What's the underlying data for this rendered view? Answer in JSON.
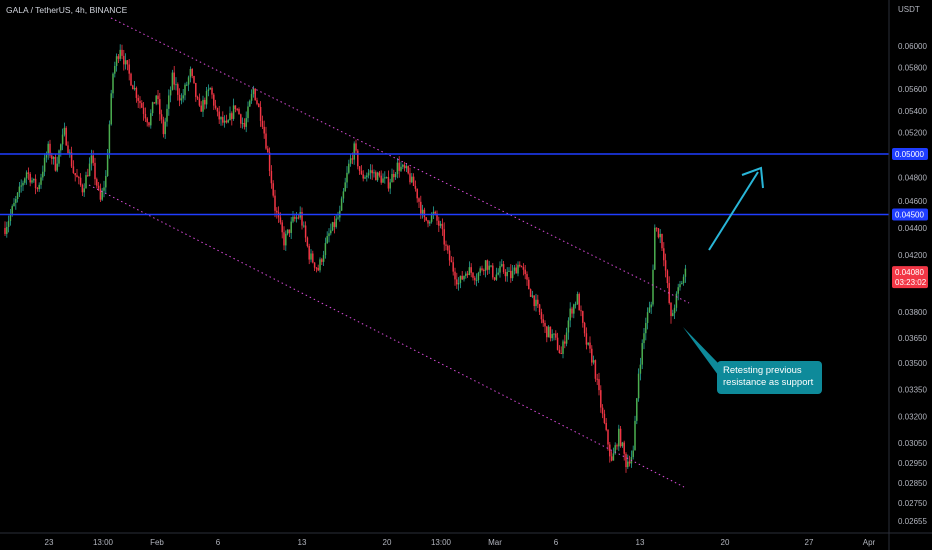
{
  "header": {
    "title": "GALA / TetherUS, 4h, BINANCE"
  },
  "chart_data": {
    "type": "candlestick",
    "currency_label": "USDT",
    "y_ticks": [
      "0.06000",
      "0.05800",
      "0.05600",
      "0.05400",
      "0.05200",
      "0.04800",
      "0.04600",
      "0.04400",
      "0.04200",
      "0.03800",
      "0.03650",
      "0.03500",
      "0.03350",
      "0.03200",
      "0.03050",
      "0.02950",
      "0.02850",
      "0.02750",
      "0.02655"
    ],
    "x_ticks": [
      "23",
      "13:00",
      "Feb",
      "6",
      "13",
      "20",
      "13:00",
      "Mar",
      "6",
      "13",
      "20",
      "27",
      "Apr"
    ],
    "levels": [
      {
        "label": "0.05000",
        "color": "#1f3dff"
      },
      {
        "label": "0.04500",
        "color": "#1f3dff"
      }
    ],
    "last_price": {
      "price": "0.04080",
      "countdown": "03:23:02",
      "color": "#f23645"
    },
    "channel_color": "#d84bd8",
    "up_color": "#26a69a",
    "up_body_color": "#4caf50",
    "down_color": "#f23645",
    "arrow_color": "#29b6d8",
    "anchors": [
      [
        0,
        0.044
      ],
      [
        6,
        0.046
      ],
      [
        12,
        0.0485
      ],
      [
        18,
        0.047
      ],
      [
        24,
        0.0505
      ],
      [
        28,
        0.049
      ],
      [
        33,
        0.052
      ],
      [
        38,
        0.0485
      ],
      [
        43,
        0.047
      ],
      [
        48,
        0.0495
      ],
      [
        53,
        0.046
      ],
      [
        56,
        0.048
      ],
      [
        60,
        0.0575
      ],
      [
        64,
        0.06
      ],
      [
        67,
        0.0582
      ],
      [
        72,
        0.056
      ],
      [
        77,
        0.054
      ],
      [
        80,
        0.053
      ],
      [
        84,
        0.0555
      ],
      [
        88,
        0.052
      ],
      [
        93,
        0.057
      ],
      [
        98,
        0.055
      ],
      [
        103,
        0.0575
      ],
      [
        108,
        0.054
      ],
      [
        114,
        0.056
      ],
      [
        118,
        0.0535
      ],
      [
        123,
        0.0525
      ],
      [
        128,
        0.0545
      ],
      [
        133,
        0.0525
      ],
      [
        138,
        0.056
      ],
      [
        143,
        0.053
      ],
      [
        146,
        0.05
      ],
      [
        150,
        0.0455
      ],
      [
        155,
        0.043
      ],
      [
        160,
        0.0445
      ],
      [
        164,
        0.045
      ],
      [
        169,
        0.042
      ],
      [
        174,
        0.041
      ],
      [
        180,
        0.0435
      ],
      [
        186,
        0.045
      ],
      [
        191,
        0.049
      ],
      [
        194,
        0.0505
      ],
      [
        198,
        0.048
      ],
      [
        203,
        0.0485
      ],
      [
        208,
        0.048
      ],
      [
        213,
        0.0475
      ],
      [
        218,
        0.049
      ],
      [
        223,
        0.0485
      ],
      [
        228,
        0.047
      ],
      [
        233,
        0.0445
      ],
      [
        238,
        0.045
      ],
      [
        242,
        0.044
      ],
      [
        246,
        0.042
      ],
      [
        252,
        0.04
      ],
      [
        257,
        0.041
      ],
      [
        262,
        0.0405
      ],
      [
        267,
        0.0415
      ],
      [
        272,
        0.0405
      ],
      [
        276,
        0.041
      ],
      [
        281,
        0.0405
      ],
      [
        286,
        0.0415
      ],
      [
        290,
        0.04
      ],
      [
        295,
        0.0385
      ],
      [
        300,
        0.037
      ],
      [
        305,
        0.0365
      ],
      [
        309,
        0.0355
      ],
      [
        314,
        0.038
      ],
      [
        318,
        0.039
      ],
      [
        322,
        0.0365
      ],
      [
        327,
        0.035
      ],
      [
        332,
        0.032
      ],
      [
        337,
        0.0295
      ],
      [
        341,
        0.031
      ],
      [
        345,
        0.0295
      ],
      [
        349,
        0.03
      ],
      [
        352,
        0.0345
      ],
      [
        356,
        0.0375
      ],
      [
        359,
        0.0385
      ],
      [
        361,
        0.044
      ],
      [
        364,
        0.0435
      ],
      [
        366,
        0.042
      ],
      [
        370,
        0.0375
      ],
      [
        374,
        0.0395
      ],
      [
        378,
        0.0408
      ]
    ],
    "annotation": {
      "lines": [
        "Retesting previous",
        "resistance as support"
      ]
    }
  }
}
